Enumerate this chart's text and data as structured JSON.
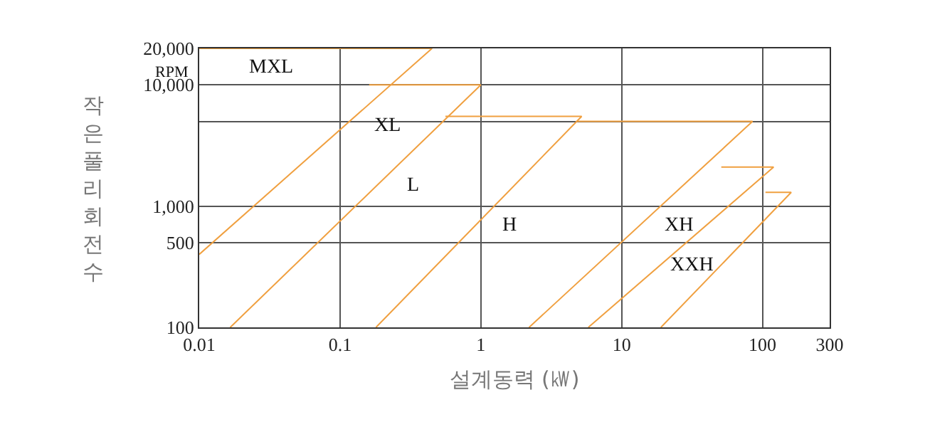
{
  "chart_data": {
    "type": "line",
    "xlabel": "설계동력 (㎾)",
    "ylabel": "작은풀리회전수",
    "log": "xy",
    "grid": true,
    "xlim": [
      0.01,
      300
    ],
    "xticks": [
      0.01,
      0.1,
      1,
      10,
      100,
      300
    ],
    "ylim": [
      100,
      20000
    ],
    "yticks": [
      100,
      500,
      {
        "value": 1000,
        "label": "1,000"
      },
      {
        "value": 5000,
        "label": null
      },
      {
        "value": 10000,
        "label": "10,000"
      },
      {
        "value": 20000,
        "label": "20,000"
      }
    ],
    "series": [
      {
        "color": "#f0a040",
        "x": [
          0.01,
          0.45,
          0.01
        ],
        "values": [
          400,
          20000,
          20000
        ]
      },
      {
        "color": "#f0a040",
        "x": [
          0.0166,
          1,
          0.161
        ],
        "values": [
          100,
          10000,
          10000
        ]
      },
      {
        "color": "#f0a040",
        "x": [
          0.18,
          5.2,
          0.56
        ],
        "values": [
          100,
          5500,
          5500
        ]
      },
      {
        "color": "#f0a040",
        "x": [
          2.2,
          85,
          4.8
        ],
        "values": [
          100,
          5000,
          5000
        ]
      },
      {
        "color": "#f0a040",
        "x": [
          5.8,
          120,
          51
        ],
        "values": [
          100,
          2100,
          2100
        ]
      },
      {
        "color": "#f0a040",
        "x": [
          19,
          160,
          105
        ],
        "values": [
          100,
          1300,
          1300
        ]
      }
    ],
    "annotations": [
      "RPM",
      "MXL",
      "XL",
      "L",
      "H",
      "XH",
      "XXH"
    ]
  }
}
